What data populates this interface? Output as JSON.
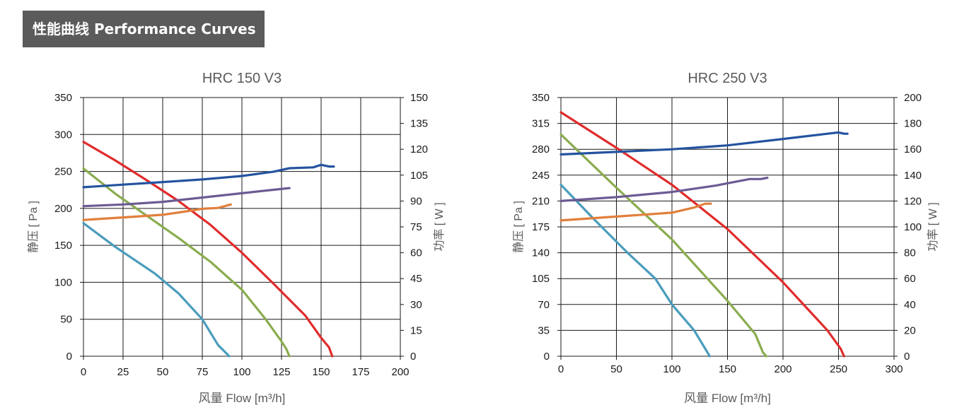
{
  "header": {
    "title": "性能曲线 Performance Curves"
  },
  "chart_data": [
    {
      "type": "line",
      "title": "HRC 150 V3",
      "xlabel": "风量 Flow  [m³/h]",
      "ylabel": "静压 [ Pa ]",
      "y2label": "功率 [ W ]",
      "xlim": [
        0,
        200
      ],
      "ylim": [
        0,
        350
      ],
      "y2lim": [
        0,
        150
      ],
      "xticks": [
        "0",
        "25",
        "50",
        "75",
        "100",
        "125",
        "150",
        "175",
        "200"
      ],
      "yticks": [
        "0",
        "50",
        "100",
        "150",
        "200",
        "250",
        "300",
        "350"
      ],
      "y2ticks": [
        "0",
        "15",
        "30",
        "45",
        "60",
        "75",
        "90",
        "105",
        "120",
        "135",
        "150"
      ],
      "grid": true,
      "series": [
        {
          "axis": "left",
          "color": "#e02b2b",
          "x": [
            0,
            20,
            40,
            60,
            80,
            100,
            120,
            140,
            150,
            155,
            157
          ],
          "y": [
            290,
            265,
            238,
            210,
            178,
            140,
            98,
            55,
            25,
            12,
            0
          ]
        },
        {
          "axis": "left",
          "color": "#8aac4f",
          "x": [
            0,
            20,
            40,
            60,
            80,
            100,
            115,
            125,
            128,
            130
          ],
          "y": [
            254,
            220,
            190,
            160,
            128,
            90,
            50,
            20,
            10,
            0
          ]
        },
        {
          "axis": "left",
          "color": "#4a9cbc",
          "x": [
            0,
            20,
            45,
            60,
            75,
            85,
            92
          ],
          "y": [
            180,
            148,
            112,
            85,
            50,
            15,
            0
          ]
        },
        {
          "axis": "right",
          "color": "#24539f",
          "x": [
            0,
            25,
            50,
            75,
            100,
            120,
            130,
            145,
            150,
            155,
            158
          ],
          "y": [
            98,
            99.5,
            101,
            102.5,
            104.5,
            107,
            109,
            109.5,
            111,
            110,
            110
          ]
        },
        {
          "axis": "right",
          "color": "#6c5b94",
          "x": [
            0,
            25,
            50,
            75,
            100,
            120,
            130
          ],
          "y": [
            87,
            88,
            89.5,
            92,
            94.5,
            96.5,
            97.5
          ]
        },
        {
          "axis": "right",
          "color": "#e17f3c",
          "x": [
            0,
            25,
            50,
            65,
            75,
            85,
            93
          ],
          "y": [
            79,
            80.5,
            82,
            84,
            85.5,
            86,
            88
          ]
        }
      ]
    },
    {
      "type": "line",
      "title": "HRC 250 V3",
      "xlabel": "风量 Flow  [m³/h]",
      "ylabel": "静压 [ Pa ]",
      "y2label": "功率 [ W ]",
      "xlim": [
        0,
        300
      ],
      "ylim": [
        0,
        350
      ],
      "y2lim": [
        0,
        200
      ],
      "xticks": [
        "0",
        "50",
        "100",
        "150",
        "200",
        "250",
        "300"
      ],
      "yticks": [
        "0",
        "35",
        "70",
        "105",
        "140",
        "175",
        "210",
        "245",
        "280",
        "315",
        "350"
      ],
      "y2ticks": [
        "0",
        "20",
        "40",
        "60",
        "80",
        "100",
        "120",
        "140",
        "160",
        "180",
        "200"
      ],
      "grid": true,
      "series": [
        {
          "axis": "left",
          "color": "#e02b2b",
          "x": [
            0,
            50,
            100,
            150,
            200,
            240,
            252,
            255
          ],
          "y": [
            330,
            282,
            232,
            172,
            100,
            35,
            10,
            0
          ]
        },
        {
          "axis": "left",
          "color": "#8aac4f",
          "x": [
            0,
            50,
            100,
            150,
            175,
            182,
            185
          ],
          "y": [
            300,
            228,
            158,
            75,
            30,
            5,
            0
          ]
        },
        {
          "axis": "left",
          "color": "#4a9cbc",
          "x": [
            0,
            30,
            60,
            85,
            100,
            120,
            130,
            134
          ],
          "y": [
            232,
            185,
            140,
            105,
            70,
            35,
            10,
            0
          ]
        },
        {
          "axis": "right",
          "color": "#24539f",
          "x": [
            0,
            50,
            100,
            150,
            200,
            240,
            250,
            255,
            258
          ],
          "y": [
            156,
            158,
            160,
            163,
            168,
            172,
            173,
            172,
            172
          ]
        },
        {
          "axis": "right",
          "color": "#6c5b94",
          "x": [
            0,
            50,
            100,
            140,
            170,
            180,
            186
          ],
          "y": [
            120,
            123,
            127,
            132,
            137,
            137,
            138
          ]
        },
        {
          "axis": "right",
          "color": "#e17f3c",
          "x": [
            0,
            50,
            100,
            120,
            130,
            135
          ],
          "y": [
            105,
            108,
            111,
            115,
            118,
            118
          ]
        }
      ]
    }
  ]
}
